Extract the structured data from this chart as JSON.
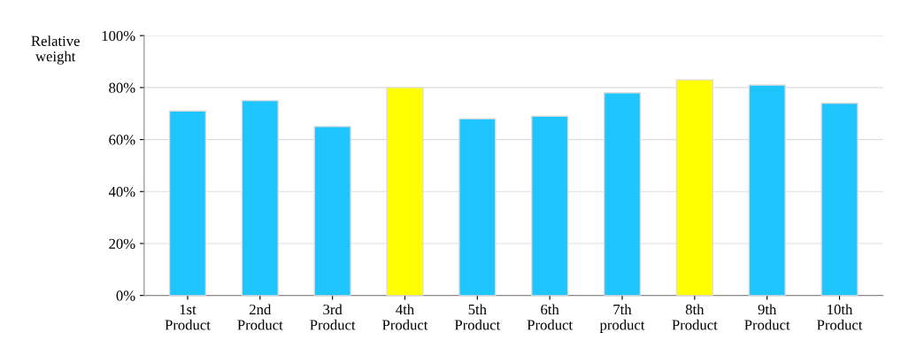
{
  "chart_data": {
    "type": "bar",
    "ylabel": "Relative\nweight",
    "categories": [
      "1st\nProduct",
      "2nd\nProduct",
      "3rd\nProduct",
      "4th\nProduct",
      "5th\nProduct",
      "6th\nProduct",
      "7th\nproduct",
      "8th\nProduct",
      "9th\nProduct",
      "10th\nProduct"
    ],
    "values": [
      71,
      75,
      65,
      80,
      68,
      69,
      78,
      83,
      81,
      74
    ],
    "colors": [
      "#1ec5ff",
      "#1ec5ff",
      "#1ec5ff",
      "#ffff00",
      "#1ec5ff",
      "#1ec5ff",
      "#1ec5ff",
      "#ffff00",
      "#1ec5ff",
      "#1ec5ff"
    ],
    "ylim": [
      0,
      100
    ],
    "yticks": [
      {
        "value": 0,
        "label": "0%"
      },
      {
        "value": 20,
        "label": "20%"
      },
      {
        "value": 40,
        "label": "40%"
      },
      {
        "value": 60,
        "label": "60%"
      },
      {
        "value": 80,
        "label": "80%"
      },
      {
        "value": 100,
        "label": "100%"
      }
    ],
    "grid": "y"
  }
}
